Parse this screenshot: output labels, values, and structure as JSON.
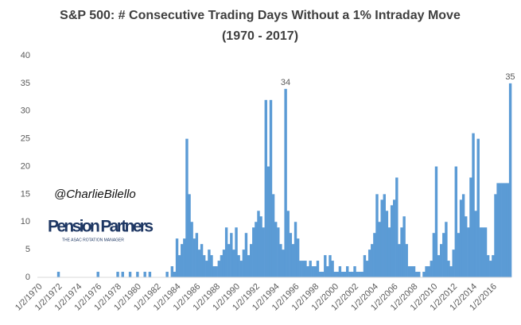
{
  "chart_data": {
    "type": "bar",
    "title": "S&P 500: # Consecutive Trading Days Without a 1% Intraday Move",
    "subtitle": "(1970 - 2017)",
    "watermark": {
      "handle": "@CharlieBilello",
      "brand": "Pension Partners",
      "tagline": "THE ASAC ROTATION MANAGER"
    },
    "color": "#5b9bd5",
    "ylim": [
      0,
      40
    ],
    "yticks": [
      0,
      5,
      10,
      15,
      20,
      25,
      30,
      35,
      40
    ],
    "grid": false,
    "annotations": [
      {
        "text": "34",
        "index": 100
      },
      {
        "text": "35",
        "index": 191
      }
    ],
    "categories": [
      "1/2/1970",
      null,
      null,
      null,
      null,
      null,
      null,
      null,
      "1/2/1972",
      null,
      null,
      null,
      null,
      null,
      null,
      null,
      "1/2/1974",
      null,
      null,
      null,
      null,
      null,
      null,
      null,
      "1/2/1976",
      null,
      null,
      null,
      null,
      null,
      null,
      null,
      "1/2/1978",
      null,
      null,
      null,
      null,
      null,
      null,
      null,
      "1/2/1980",
      null,
      null,
      null,
      null,
      null,
      null,
      null,
      "1/2/1982",
      null,
      null,
      null,
      null,
      null,
      null,
      null,
      "1/2/1984",
      null,
      null,
      null,
      null,
      null,
      null,
      null,
      "1/2/1986",
      null,
      null,
      null,
      null,
      null,
      null,
      null,
      "1/2/1988",
      null,
      null,
      null,
      null,
      null,
      null,
      null,
      "1/2/1990",
      null,
      null,
      null,
      null,
      null,
      null,
      null,
      "1/2/1992",
      null,
      null,
      null,
      null,
      null,
      null,
      null,
      "1/2/1994",
      null,
      null,
      null,
      null,
      null,
      null,
      null,
      "1/2/1996",
      null,
      null,
      null,
      null,
      null,
      null,
      null,
      "1/2/1998",
      null,
      null,
      null,
      null,
      null,
      null,
      null,
      "1/2/2000",
      null,
      null,
      null,
      null,
      null,
      null,
      null,
      "1/2/2002",
      null,
      null,
      null,
      null,
      null,
      null,
      null,
      "1/2/2004",
      null,
      null,
      null,
      null,
      null,
      null,
      null,
      "1/2/2006",
      null,
      null,
      null,
      null,
      null,
      null,
      null,
      "1/2/2008",
      null,
      null,
      null,
      null,
      null,
      null,
      null,
      "1/2/2010",
      null,
      null,
      null,
      null,
      null,
      null,
      null,
      "1/2/2012",
      null,
      null,
      null,
      null,
      null,
      null,
      null,
      "1/2/2014",
      null,
      null,
      null,
      null,
      null,
      null,
      null,
      "1/2/2016",
      null,
      null,
      null,
      null,
      null,
      null,
      null
    ],
    "values": [
      0,
      0,
      0,
      0,
      0,
      0,
      0,
      0,
      1,
      0,
      0,
      0,
      0,
      0,
      0,
      0,
      0,
      0,
      0,
      0,
      0,
      0,
      0,
      0,
      1,
      0,
      0,
      0,
      0,
      0,
      0,
      0,
      1,
      0,
      1,
      0,
      0,
      1,
      0,
      0,
      1,
      0,
      0,
      1,
      0,
      1,
      0,
      0,
      0,
      0,
      0,
      0,
      1,
      0,
      2,
      1,
      7,
      4,
      6,
      7,
      25,
      15,
      10,
      7,
      8,
      5,
      6,
      4,
      3,
      5,
      4,
      2,
      2,
      3,
      4,
      5,
      9,
      6,
      8,
      5,
      9,
      4,
      3,
      5,
      8,
      4,
      6,
      9,
      10,
      12,
      11,
      9,
      32,
      20,
      32,
      15,
      10,
      9,
      6,
      5,
      34,
      12,
      8,
      6,
      10,
      7,
      3,
      3,
      3,
      2,
      3,
      2,
      2,
      3,
      1,
      1,
      4,
      2,
      4,
      3,
      1,
      1,
      2,
      1,
      1,
      2,
      1,
      1,
      2,
      1,
      1,
      1,
      4,
      3,
      5,
      6,
      8,
      15,
      10,
      14,
      15,
      12,
      9,
      13,
      14,
      18,
      6,
      9,
      11,
      6,
      2,
      2,
      2,
      1,
      1,
      0,
      1,
      2,
      2,
      3,
      8,
      20,
      4,
      6,
      8,
      10,
      3,
      2,
      5,
      20,
      8,
      14,
      15,
      11,
      9,
      18,
      26,
      12,
      25,
      9,
      9,
      9,
      4,
      3,
      4,
      15,
      17,
      17,
      17,
      17,
      17,
      35
    ]
  }
}
